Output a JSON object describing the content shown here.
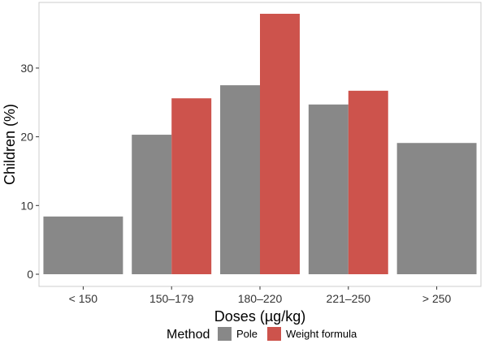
{
  "chart_data": {
    "type": "bar",
    "categories": [
      "< 150",
      "150–179",
      "180–220",
      "221–250",
      "> 250"
    ],
    "series": [
      {
        "name": "Pole",
        "values": [
          8.4,
          20.3,
          27.5,
          24.7,
          19.1
        ],
        "color": "#888888"
      },
      {
        "name": "Weight formula",
        "values": [
          null,
          25.6,
          37.9,
          26.7,
          null
        ],
        "color": "#cd534c"
      }
    ],
    "xlabel": "Doses (µg/kg)",
    "ylabel": "Children (%)",
    "ylim": [
      0,
      39
    ],
    "yticks": [
      0,
      10,
      20,
      30
    ],
    "grid": false,
    "legend": {
      "title": "Method",
      "position": "bottom"
    }
  }
}
